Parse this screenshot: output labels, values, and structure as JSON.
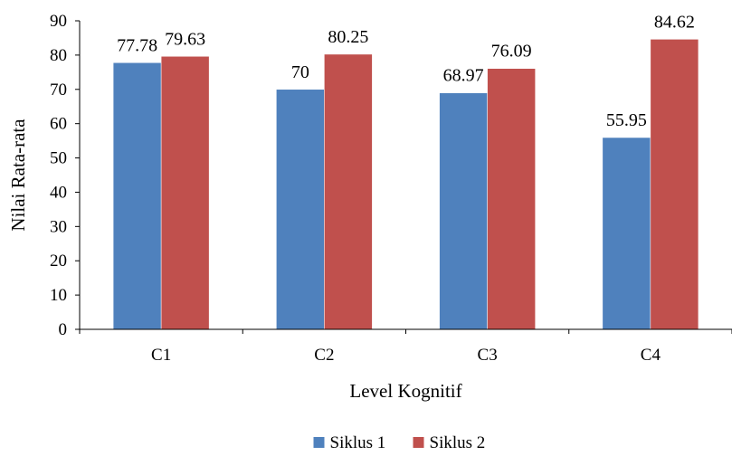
{
  "chart_data": {
    "type": "bar",
    "title": "",
    "xlabel": "Level Kognitif",
    "ylabel": "Nilai Rata-rata",
    "categories": [
      "C1",
      "C2",
      "C3",
      "C4"
    ],
    "series": [
      {
        "name": "Siklus 1",
        "values": [
          77.78,
          70,
          68.97,
          55.95
        ],
        "labels": [
          "77.78",
          "70",
          "68.97",
          "55.95"
        ],
        "color": "#4F81BD"
      },
      {
        "name": "Siklus 2",
        "values": [
          79.63,
          80.25,
          76.09,
          84.62
        ],
        "labels": [
          "79.63",
          "80.25",
          "76.09",
          "84.62"
        ],
        "color": "#C0504D"
      }
    ],
    "ylim": [
      0,
      90
    ],
    "yticks": [
      0,
      10,
      20,
      30,
      40,
      50,
      60,
      70,
      80,
      90
    ],
    "grid": false,
    "legend_position": "bottom"
  }
}
